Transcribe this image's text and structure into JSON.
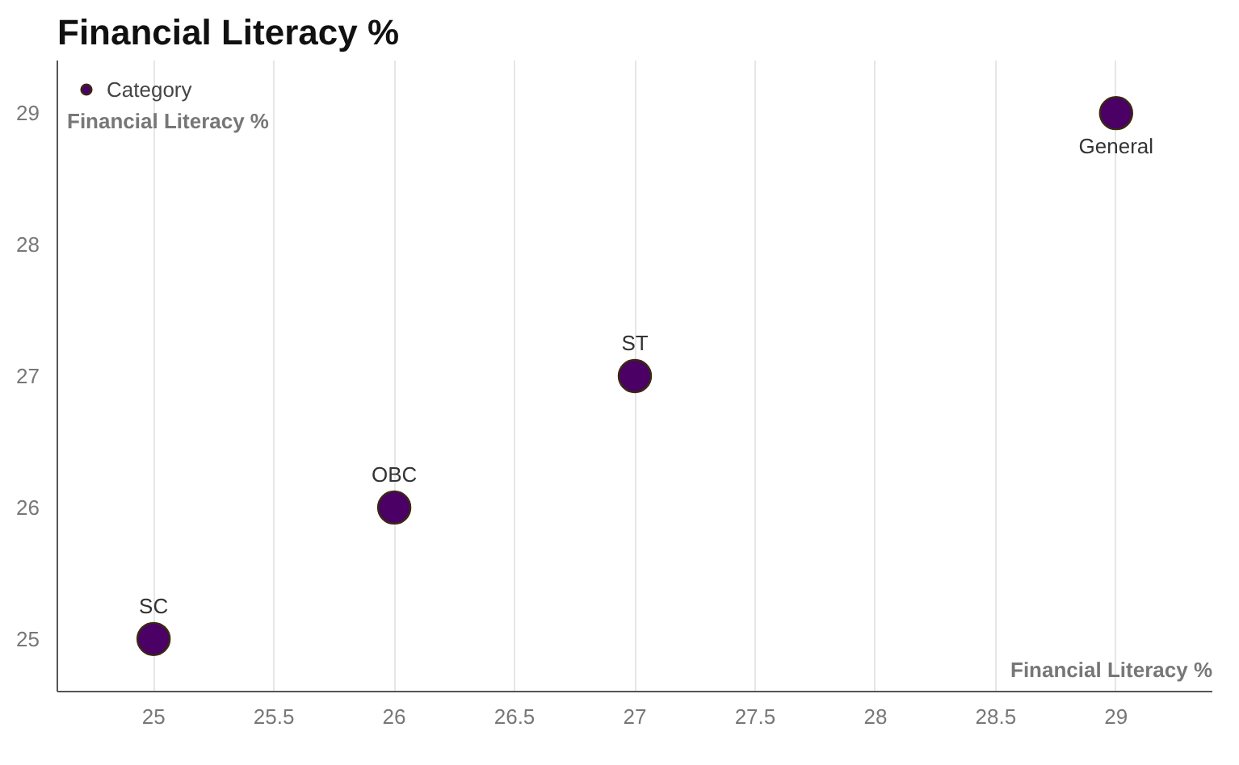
{
  "chart_data": {
    "type": "scatter",
    "title": "Financial Literacy %",
    "xlabel": "Financial Literacy %",
    "ylabel": "Financial Literacy %",
    "series": [
      {
        "name": "Category",
        "color": "#4b0066",
        "x": [
          25,
          26,
          27,
          29
        ],
        "values": [
          25,
          26,
          27,
          29
        ]
      }
    ],
    "annotations": [
      {
        "text": "SC",
        "x": 25,
        "y": 25
      },
      {
        "text": "OBC",
        "x": 26,
        "y": 26
      },
      {
        "text": "ST",
        "x": 27,
        "y": 27
      },
      {
        "text": "General",
        "x": 29,
        "y": 29
      }
    ],
    "xlim": [
      24.6,
      29.4
    ],
    "ylim": [
      24.6,
      29.4
    ],
    "xticks": [
      25,
      25.5,
      26,
      26.5,
      27,
      27.5,
      28,
      28.5,
      29
    ],
    "yticks": [
      25,
      26,
      27,
      28,
      29
    ],
    "grid": "x",
    "legend": "top left",
    "marker": "circle"
  }
}
